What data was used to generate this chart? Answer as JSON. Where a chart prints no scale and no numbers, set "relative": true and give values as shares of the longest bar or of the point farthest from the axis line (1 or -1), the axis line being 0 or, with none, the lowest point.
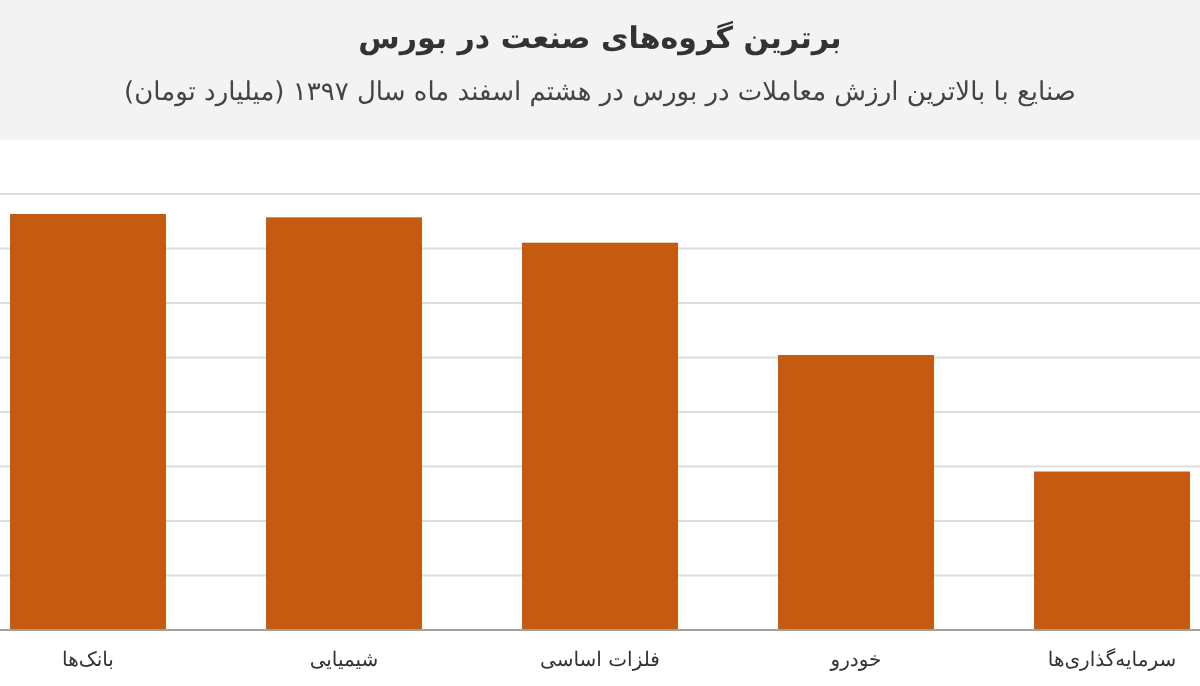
{
  "chart_data": {
    "type": "bar",
    "title": "برترین گروه‌های صنعت در بورس",
    "subtitle": "صنایع با بالاترین ارزش معاملات در بورس در هشتم اسفند ماه سال ۱۳۹۷ (میلیارد تومان)",
    "categories": [
      "بانک‌ها",
      "شیمیایی",
      "فلزات اساسی",
      "خودرو",
      "سرمایه‌گذاری‌ها"
    ],
    "values": [
      1,
      0.992,
      0.931,
      0.661,
      0.381
    ],
    "color": "#c55a11",
    "relative": true,
    "grid": "y"
  }
}
